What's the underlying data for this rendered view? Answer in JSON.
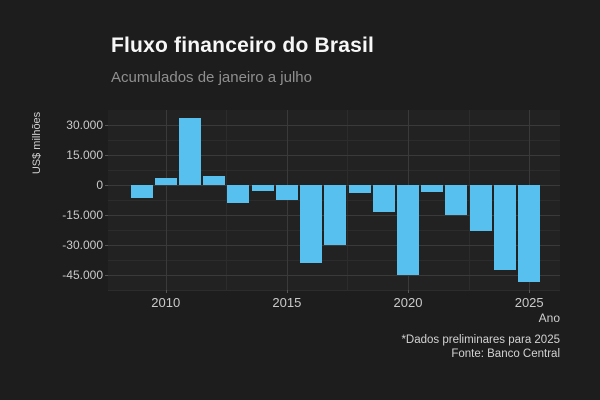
{
  "header": {
    "title": "Fluxo financeiro do Brasil",
    "subtitle": "Acumulados de janeiro a julho"
  },
  "footer": {
    "note": "*Dados preliminares para 2025",
    "source": "Fonte: Banco Central"
  },
  "colors": {
    "page_bg": "#1d1d1d",
    "panel_bg": "#222222",
    "bar": "#57c0ee",
    "grid_major": "#3a3a3a",
    "grid_minor": "#2c2c2c",
    "axis_text": "#c9c9c9",
    "title_text": "#f7f7f7",
    "subtitle_text": "#8f8f8f"
  },
  "chart_data": {
    "type": "bar",
    "title": "Fluxo financeiro do Brasil",
    "subtitle": "Acumulados de janeiro a julho",
    "xlabel": "Ano",
    "ylabel": "US$ milhões",
    "categories": [
      2009,
      2010,
      2011,
      2012,
      2013,
      2014,
      2015,
      2016,
      2017,
      2018,
      2019,
      2020,
      2021,
      2022,
      2023,
      2024,
      2025
    ],
    "values": [
      -6500,
      3500,
      33400,
      4400,
      -9000,
      -2800,
      -7500,
      -39000,
      -30000,
      -3900,
      -13700,
      -45100,
      -3400,
      -15000,
      -22800,
      -42700,
      -48700
    ],
    "ylim": [
      -52500,
      37500
    ],
    "yticks": [
      {
        "value": 30000,
        "label": "30.000"
      },
      {
        "value": 15000,
        "label": "15.000"
      },
      {
        "value": 0,
        "label": "0"
      },
      {
        "value": -15000,
        "label": "-15.000"
      },
      {
        "value": -30000,
        "label": "-30.000"
      },
      {
        "value": -45000,
        "label": "-45.000"
      }
    ],
    "yticks_minor": [
      22500,
      7500,
      -7500,
      -22500,
      -37500,
      -52500
    ],
    "xticks": [
      {
        "value": 2010,
        "label": "2010"
      },
      {
        "value": 2015,
        "label": "2015"
      },
      {
        "value": 2020,
        "label": "2020"
      },
      {
        "value": 2025,
        "label": "2025"
      }
    ],
    "xticks_minor": [
      2012.5,
      2017.5,
      2022.5
    ],
    "bar_color": "#57c0ee",
    "grid": true,
    "legend_position": "none"
  }
}
